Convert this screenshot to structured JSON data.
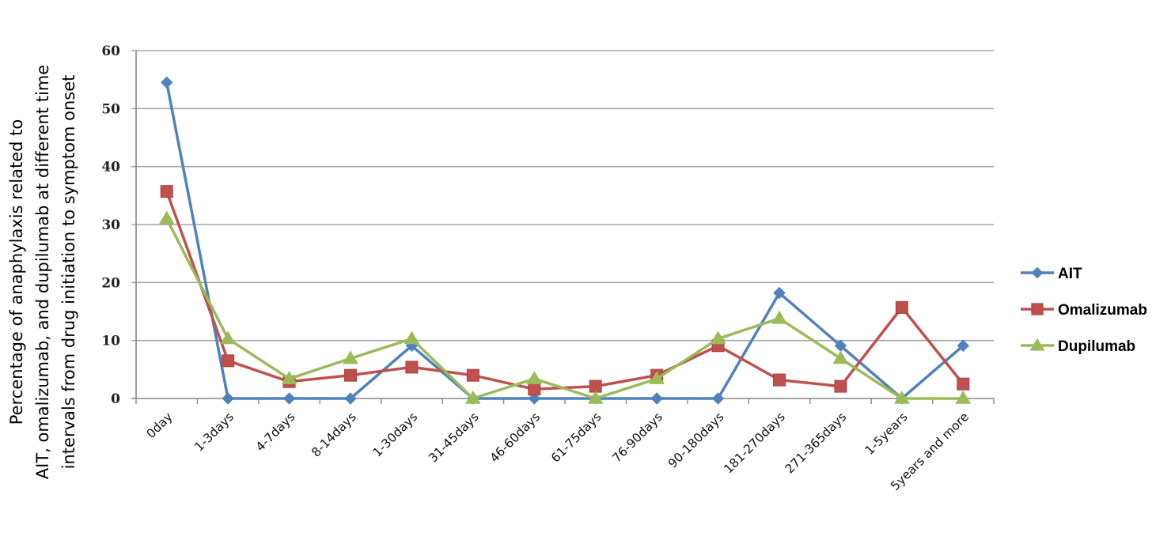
{
  "chart_data": {
    "type": "line",
    "title": "",
    "xlabel": "",
    "ylabel_lines": [
      "Percentage of anaphylaxis related to",
      "AIT, omalizumab, and dupilumab at different time",
      "intervals  from drug initiation to symptom onset"
    ],
    "ylabel": "Percentage of anaphylaxis related to AIT, omalizumab, and dupilumab at different time intervals from drug initiation to symptom onset",
    "ylim": [
      0,
      60
    ],
    "yticks": [
      0,
      10,
      20,
      30,
      40,
      50,
      60
    ],
    "grid": true,
    "legend_position": "right",
    "categories": [
      "0day",
      "1-3days",
      "4-7days",
      "8-14days",
      "1-30days",
      "31-45days",
      "46-60days",
      "61-75days",
      "76-90days",
      "90-180days",
      "181-270days",
      "271-365days",
      "1-5years",
      "5years and more"
    ],
    "series": [
      {
        "name": "AIT",
        "color": "#4F81BD",
        "marker": "diamond",
        "values": [
          54.5,
          0,
          0,
          0,
          9.1,
          0,
          0,
          0,
          0,
          0,
          18.2,
          9.1,
          0,
          9.1
        ]
      },
      {
        "name": "Omalizumab",
        "color": "#C0504D",
        "marker": "square",
        "values": [
          35.7,
          6.5,
          2.9,
          4.0,
          5.4,
          4.0,
          1.6,
          2.1,
          4.0,
          9.1,
          3.2,
          2.1,
          15.7,
          2.5
        ]
      },
      {
        "name": "Dupilumab",
        "color": "#9BBB59",
        "marker": "triangle",
        "values": [
          31.0,
          10.3,
          3.4,
          6.9,
          10.3,
          0,
          3.4,
          0,
          3.4,
          10.3,
          13.8,
          6.9,
          0,
          0
        ]
      }
    ]
  },
  "colors": {
    "gridline": "#a6a6a6",
    "axis": "#868686",
    "text": "#000000"
  }
}
